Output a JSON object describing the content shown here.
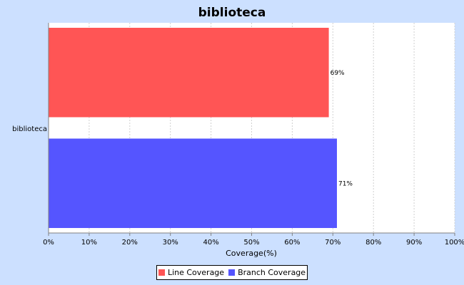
{
  "chart_data": {
    "type": "bar",
    "orientation": "horizontal",
    "title": "biblioteca",
    "categories": [
      "biblioteca"
    ],
    "series": [
      {
        "name": "Line Coverage",
        "values": [
          69
        ],
        "label": "69%",
        "color": "#ff5555"
      },
      {
        "name": "Branch Coverage",
        "values": [
          71
        ],
        "label": "71%",
        "color": "#5555ff"
      }
    ],
    "xlabel": "Coverage(%)",
    "ylabel": "",
    "xlim": [
      0,
      100
    ],
    "xticks": [
      0,
      10,
      20,
      30,
      40,
      50,
      60,
      70,
      80,
      90,
      100
    ],
    "xtick_labels": [
      "0%",
      "10%",
      "20%",
      "30%",
      "40%",
      "50%",
      "60%",
      "70%",
      "80%",
      "90%",
      "100%"
    ],
    "grid": true,
    "legend_position": "bottom-center",
    "background_color": "#cce0ff",
    "plot_background": "#ffffff"
  }
}
